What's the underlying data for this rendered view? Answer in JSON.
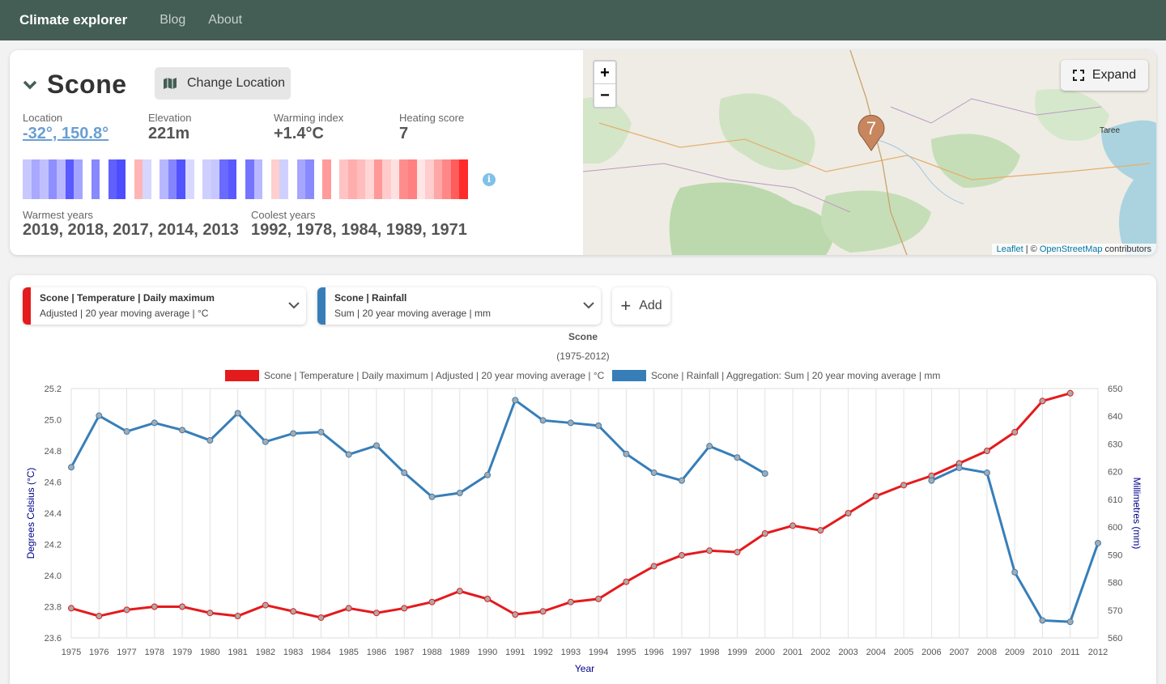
{
  "nav": {
    "brand": "Climate explorer",
    "links": [
      "Blog",
      "About"
    ]
  },
  "location": {
    "name": "Scone",
    "change_label": "Change Location",
    "stats": [
      {
        "label": "Location",
        "value": "-32°, 150.8°"
      },
      {
        "label": "Elevation",
        "value": "221m"
      },
      {
        "label": "Warming index",
        "value": "+1.4°C"
      },
      {
        "label": "Heating score",
        "value": "7"
      }
    ],
    "warmest_label": "Warmest years",
    "warmest_value": "2019, 2018, 2017, 2014, 2013",
    "coolest_label": "Coolest years",
    "coolest_value": "1992, 1978, 1984, 1989, 1971",
    "stripe_colors": [
      "#c8c8ff",
      "#a9a9ff",
      "#c0c0ff",
      "#8f8fff",
      "#b8b8ff",
      "#5a5aff",
      "#a5a5ff",
      "#ffffff",
      "#8888ff",
      "#ffffff",
      "#6060ff",
      "#4d4dff",
      "#ffffff",
      "#ffb5b5",
      "#d6d6ff",
      "#ffffff",
      "#b7b7ff",
      "#8585ff",
      "#5252ff",
      "#d8d8ff",
      "#ffffff",
      "#cfcfff",
      "#c7c7ff",
      "#6a6aff",
      "#5959ff",
      "#ffffff",
      "#7474ff",
      "#b9b9ff",
      "#ffffff",
      "#ffcfcf",
      "#d0d0ff",
      "#ffffff",
      "#a6a6ff",
      "#8a8aff",
      "#ffffff",
      "#ff9b9b",
      "#ffffff",
      "#ffc3c3",
      "#ffadad",
      "#ffbdbd",
      "#ffd5d5",
      "#ff9898",
      "#ffcbcb",
      "#ffe0e0",
      "#ff8c8c",
      "#ff8080",
      "#ffe5e5",
      "#ffcdcd",
      "#ffa6a6",
      "#ff8787",
      "#ff5c5c",
      "#ff2b2b"
    ]
  },
  "map": {
    "zoom_in": "+",
    "zoom_out": "−",
    "expand_label": "Expand",
    "cluster_count": "7",
    "place_label": "Taree",
    "attrib_leaflet": "Leaflet",
    "attrib_sep": " | © ",
    "attrib_osm": "OpenStreetMap",
    "attrib_tail": " contributors"
  },
  "series_selectors": [
    {
      "line1": "Scone | Temperature | Daily maximum",
      "line2": "Adjusted | 20 year moving average | °C",
      "color": "#e41a1c"
    },
    {
      "line1": "Scone | Rainfall",
      "line2": "Sum | 20 year moving average | mm",
      "color": "#377eb8"
    }
  ],
  "add_label": "Add",
  "chart_data": {
    "type": "line",
    "title": "Scone",
    "subtitle": "(1975-2012)",
    "xlabel": "Year",
    "ylabel_left": "Degrees Celsius (°C)",
    "ylabel_right": "Millimetres (mm)",
    "x": [
      1975,
      1976,
      1977,
      1978,
      1979,
      1980,
      1981,
      1982,
      1983,
      1984,
      1985,
      1986,
      1987,
      1988,
      1989,
      1990,
      1991,
      1992,
      1993,
      1994,
      1995,
      1996,
      1997,
      1998,
      1999,
      2000,
      2001,
      2002,
      2003,
      2004,
      2005,
      2006,
      2007,
      2008,
      2009,
      2010,
      2011,
      2012
    ],
    "ylim_left": [
      23.6,
      25.2
    ],
    "yticks_left": [
      "23.6",
      "23.8",
      "24.0",
      "24.2",
      "24.4",
      "24.6",
      "24.8",
      "25.0",
      "25.2"
    ],
    "ylim_right": [
      560,
      650
    ],
    "yticks_right": [
      "560",
      "570",
      "580",
      "590",
      "600",
      "610",
      "620",
      "630",
      "640",
      "650"
    ],
    "grid": "vertical",
    "legend_position": "top",
    "series": [
      {
        "name": "Scone | Temperature | Daily maximum | Adjusted | 20 year moving average | °C",
        "axis": "left",
        "color": "#e41a1c",
        "values": [
          23.79,
          23.74,
          23.78,
          23.8,
          23.8,
          23.76,
          23.74,
          23.81,
          23.77,
          23.73,
          23.79,
          23.76,
          23.79,
          23.83,
          23.9,
          23.85,
          23.75,
          23.77,
          23.83,
          23.85,
          23.96,
          24.06,
          24.13,
          24.16,
          24.15,
          24.27,
          24.32,
          24.29,
          24.4,
          24.51,
          24.58,
          24.64,
          24.72,
          24.8,
          24.92,
          25.12,
          25.17,
          null
        ]
      },
      {
        "name": "Scone | Rainfall | Aggregation: Sum | 20 year moving average | mm",
        "axis": "right",
        "color": "#377eb8",
        "values": [
          621.6,
          640.2,
          634.5,
          637.6,
          635.0,
          631.3,
          641.1,
          630.8,
          633.8,
          634.3,
          626.2,
          629.4,
          619.6,
          610.9,
          612.3,
          618.8,
          645.8,
          638.5,
          637.6,
          636.6,
          626.4,
          619.6,
          616.8,
          629.2,
          625.1,
          619.3,
          null,
          null,
          null,
          null,
          null,
          616.8,
          621.4,
          619.6,
          583.7,
          566.3,
          565.8,
          594.2
        ]
      }
    ]
  }
}
